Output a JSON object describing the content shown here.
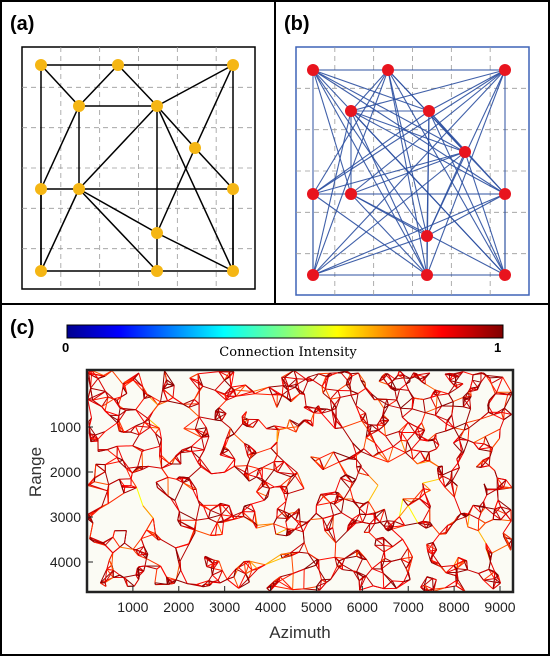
{
  "panels": {
    "a": {
      "label": "(a)"
    },
    "b": {
      "label": "(b)"
    },
    "c": {
      "label": "(c)"
    }
  },
  "colorbar": {
    "title": "Connection Intensity",
    "min_label": "0",
    "max_label": "1"
  },
  "axes": {
    "x_label": "Azimuth",
    "y_label": "Range",
    "x_ticks": [
      "1000",
      "2000",
      "3000",
      "4000",
      "5000",
      "6000",
      "7000",
      "8000",
      "9000"
    ],
    "y_ticks": [
      "1000",
      "2000",
      "3000",
      "4000"
    ]
  },
  "colors": {
    "panel_a_node": "#f5b614",
    "panel_a_edge": "#000000",
    "panel_b_node": "#e8141e",
    "panel_b_edge": "#2b4fa0",
    "panel_b_frame": "#3f63b7"
  }
}
